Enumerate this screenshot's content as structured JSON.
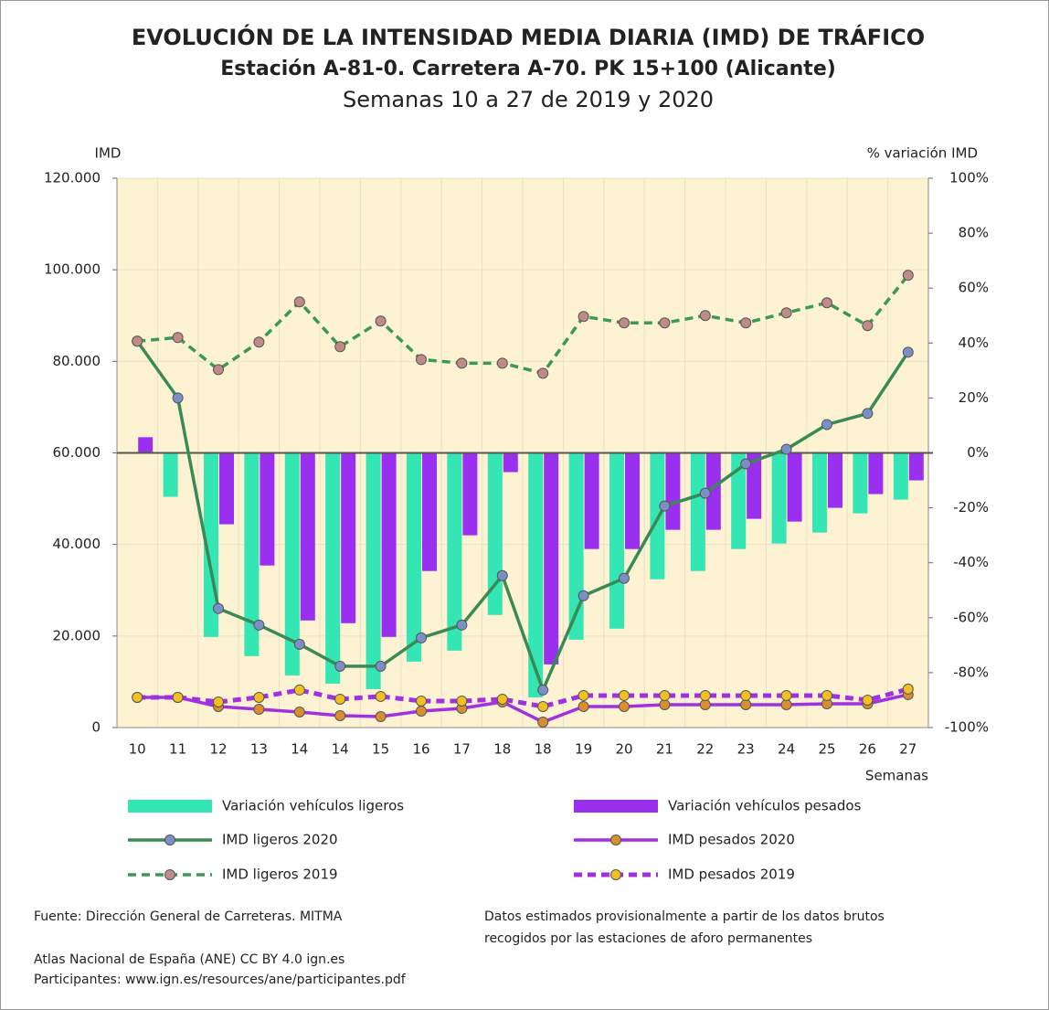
{
  "chart_data": {
    "type": "combo",
    "title": "EVOLUCIÓN DE LA INTENSIDAD MEDIA DIARIA (IMD) DE TRÁFICO",
    "subtitle": "Estación A-81-0. Carretera A-70. PK 15+100 (Alicante)",
    "subtitle2": "Semanas 10 a 27 de 2019 y 2020",
    "y_label": "IMD",
    "y2_label": "% variación IMD",
    "x_label": "Semanas",
    "categories": [
      "10",
      "11",
      "12",
      "13",
      "14",
      "14",
      "15",
      "16",
      "17",
      "18",
      "18",
      "19",
      "20",
      "21",
      "22",
      "23",
      "24",
      "25",
      "26",
      "27"
    ],
    "ylim": [
      0,
      120000
    ],
    "yticks": [
      0,
      {
        "value": 20000,
        "label": "20.000"
      },
      {
        "value": 40000,
        "label": "40.000"
      },
      {
        "value": 60000,
        "label": "60.000"
      },
      {
        "value": 80000,
        "label": "80.000"
      },
      {
        "value": 100000,
        "label": "100.000"
      },
      {
        "value": 120000,
        "label": "120.000"
      }
    ],
    "y2lim": [
      -100,
      100
    ],
    "y2ticks": [
      {
        "value": -100,
        "label": "-100%"
      },
      {
        "value": -80,
        "label": "-80%"
      },
      {
        "value": -60,
        "label": "-60%"
      },
      {
        "value": -40,
        "label": "-40%"
      },
      {
        "value": -20,
        "label": "-20%"
      },
      {
        "value": 0,
        "label": "0%"
      },
      {
        "value": 20,
        "label": "20%"
      },
      {
        "value": 40,
        "label": "40%"
      },
      {
        "value": 60,
        "label": "60%"
      },
      {
        "value": 80,
        "label": "80%"
      },
      {
        "value": 100,
        "label": "100%"
      }
    ],
    "grid": true,
    "series": [
      {
        "name": "Variación  vehículos ligeros",
        "type": "bar",
        "axis": "y2",
        "color": "#33e6b4",
        "values": [
          0,
          -16,
          -67,
          -74,
          -81,
          -84,
          -86,
          -76,
          -72,
          -59,
          -89,
          -68,
          -64,
          -46,
          -43,
          -35,
          -33,
          -29,
          -22,
          -17
        ]
      },
      {
        "name": "Variación vehículos pesados",
        "type": "bar",
        "axis": "y2",
        "color": "#9b2ff0",
        "values": [
          5.7,
          0,
          -26,
          -41,
          -61,
          -62,
          -67,
          -43,
          -30,
          -7,
          -77,
          -35,
          -35,
          -28,
          -28,
          -24,
          -25,
          -20,
          -15,
          -10
        ]
      },
      {
        "name": "IMD ligeros 2020",
        "type": "line",
        "color": "#3a8a55",
        "marker_color": "#7b8fc7",
        "dashed": false,
        "values": [
          84400,
          72000,
          26000,
          22400,
          18200,
          13400,
          13400,
          19600,
          22400,
          33200,
          8200,
          28800,
          32600,
          48400,
          51200,
          57600,
          60800,
          66200,
          68600,
          82000
        ]
      },
      {
        "name": "IMD pesados 2020",
        "type": "line",
        "color": "#a030e0",
        "marker_color": "#d98f30",
        "dashed": false,
        "values": [
          6600,
          6600,
          4600,
          4000,
          3400,
          2600,
          2400,
          3600,
          4200,
          5600,
          1200,
          4600,
          4600,
          5000,
          5000,
          5000,
          5000,
          5200,
          5200,
          7200
        ]
      },
      {
        "name": "IMD ligeros 2019",
        "type": "line",
        "color": "#3a9a55",
        "marker_color": "#c08a86",
        "dashed": true,
        "values": [
          84400,
          85200,
          78200,
          84200,
          93000,
          83200,
          88800,
          80400,
          79600,
          79600,
          77400,
          89800,
          88400,
          88400,
          90000,
          88400,
          90600,
          92800,
          87800,
          98800
        ]
      },
      {
        "name": "IMD pesados 2019",
        "type": "line",
        "color": "#a030e0",
        "marker_color": "#f0c020",
        "dashed": true,
        "values": [
          6600,
          6600,
          5600,
          6600,
          8200,
          6200,
          6800,
          5800,
          5800,
          6200,
          4600,
          7000,
          7000,
          7000,
          7000,
          7000,
          7000,
          7000,
          6000,
          8400
        ]
      }
    ],
    "notes": [
      "Fuente: Dirección General de Carreteras. MITMA",
      "Datos estimados provisionalmente a partir de los datos brutos",
      "recogidos por las estaciones de aforo permanentes",
      "Atlas Nacional de España (ANE) CC BY 4.0 ign.es",
      "Participantes: www.ign.es/resources/ane/participantes.pdf"
    ]
  }
}
